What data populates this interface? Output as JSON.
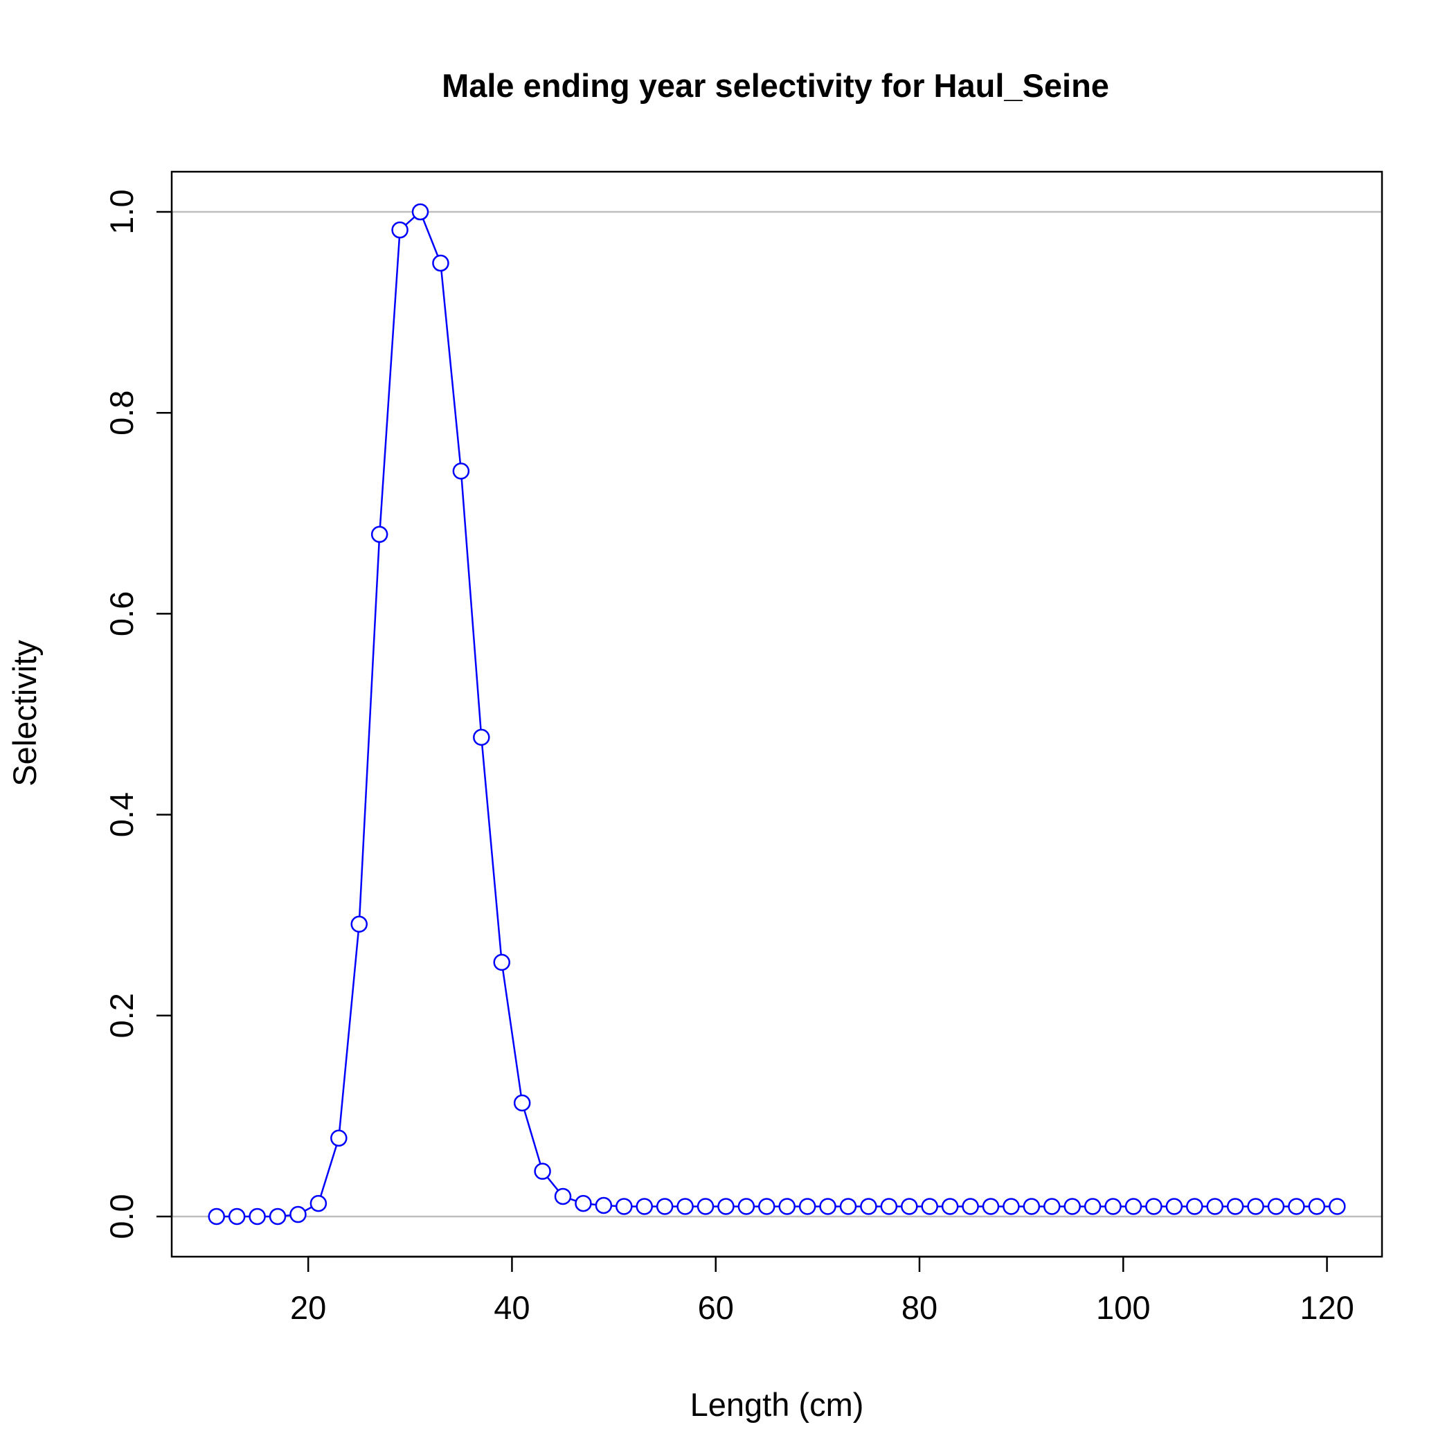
{
  "chart_data": {
    "type": "line",
    "title": "Male ending year selectivity for Haul_Seine",
    "xlabel": "Length (cm)",
    "ylabel": "Selectivity",
    "xlim": [
      6.6,
      125.4
    ],
    "ylim": [
      -0.04,
      1.04
    ],
    "x_ticks": [
      20,
      40,
      60,
      80,
      100,
      120
    ],
    "y_ticks": [
      0.0,
      0.2,
      0.4,
      0.6,
      0.8,
      1.0
    ],
    "x_tick_labels": [
      "20",
      "40",
      "60",
      "80",
      "100",
      "120"
    ],
    "y_tick_labels": [
      "0.0",
      "0.2",
      "0.4",
      "0.6",
      "0.8",
      "1.0"
    ],
    "reference_lines_y": [
      0,
      1
    ],
    "grid": false,
    "series": [
      {
        "color": "#0000ff",
        "marker": "open-circle",
        "x": [
          11,
          13,
          15,
          17,
          19,
          21,
          23,
          25,
          27,
          29,
          31,
          33,
          35,
          37,
          39,
          41,
          43,
          45,
          47,
          49,
          51,
          53,
          55,
          57,
          59,
          61,
          63,
          65,
          67,
          69,
          71,
          73,
          75,
          77,
          79,
          81,
          83,
          85,
          87,
          89,
          91,
          93,
          95,
          97,
          99,
          101,
          103,
          105,
          107,
          109,
          111,
          113,
          115,
          117,
          119,
          121
        ],
        "y": [
          0.0,
          0.0,
          0.0,
          0.0,
          0.002,
          0.013,
          0.078,
          0.291,
          0.679,
          0.982,
          1.0,
          0.949,
          0.742,
          0.477,
          0.253,
          0.113,
          0.045,
          0.02,
          0.013,
          0.011,
          0.01,
          0.01,
          0.01,
          0.01,
          0.01,
          0.01,
          0.01,
          0.01,
          0.01,
          0.01,
          0.01,
          0.01,
          0.01,
          0.01,
          0.01,
          0.01,
          0.01,
          0.01,
          0.01,
          0.01,
          0.01,
          0.01,
          0.01,
          0.01,
          0.01,
          0.01,
          0.01,
          0.01,
          0.01,
          0.01,
          0.01,
          0.01,
          0.01,
          0.01,
          0.01,
          0.01
        ]
      }
    ]
  }
}
